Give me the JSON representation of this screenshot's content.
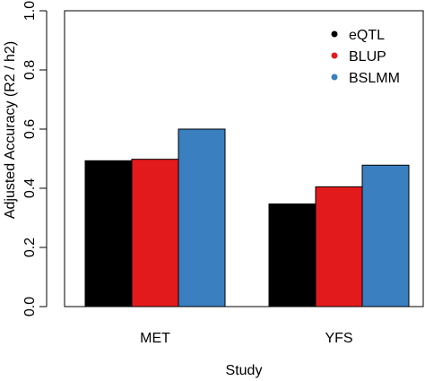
{
  "chart_data": {
    "type": "bar",
    "xlabel": "Study",
    "ylabel": "Adjusted Accuracy (R2 / h2)",
    "categories": [
      "MET",
      "YFS"
    ],
    "series": [
      {
        "name": "eQTL",
        "color": "#000000",
        "values": [
          0.493,
          0.347
        ]
      },
      {
        "name": "BLUP",
        "color": "#e31a1c",
        "values": [
          0.498,
          0.405
        ]
      },
      {
        "name": "BSLMM",
        "color": "#3a7fbf",
        "values": [
          0.6,
          0.478
        ]
      }
    ],
    "ylim": [
      0,
      1.0
    ],
    "yticks": [
      "0.0",
      "0.2",
      "0.4",
      "0.6",
      "0.8",
      "1.0"
    ],
    "legend_position": "top-right",
    "grid": false
  }
}
